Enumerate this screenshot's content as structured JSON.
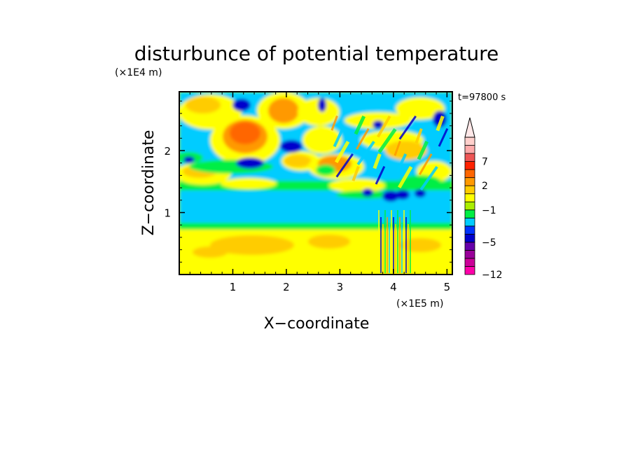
{
  "chart_data": {
    "type": "heatmap",
    "title": "disturbunce of potential temperature",
    "time_label": "t=97800 s",
    "xlabel": "X−coordinate",
    "ylabel": "Z−coordinate",
    "x_unit": "(×1E5 m)",
    "y_unit": "(×1E4 m)",
    "xlim": [
      0,
      5.1
    ],
    "ylim": [
      0,
      2.95
    ],
    "x_ticks": [
      1,
      2,
      3,
      4,
      5
    ],
    "y_ticks": [
      1,
      2
    ],
    "x_tick_labels": [
      "1",
      "2",
      "3",
      "4",
      "5"
    ],
    "y_tick_labels": [
      "1",
      "2"
    ],
    "colorbar": {
      "levels": [
        -12,
        -10,
        -8,
        -6,
        -5,
        -4,
        -3,
        -2,
        -1,
        0,
        1,
        2,
        3,
        5,
        7,
        8,
        9
      ],
      "tick_labels": [
        "7",
        "2",
        "−1",
        "−5",
        "−12"
      ],
      "tick_values": [
        7,
        2,
        -1,
        -5,
        -12
      ],
      "colors": [
        "#ff00aa",
        "#cc0099",
        "#990099",
        "#6600aa",
        "#0000cc",
        "#0033ff",
        "#00ccff",
        "#00ee44",
        "#aaee00",
        "#ffff00",
        "#ffcc00",
        "#ff9900",
        "#ff6600",
        "#ff2200",
        "#ee5555",
        "#ffaaaa",
        "#ffd0cc"
      ]
    },
    "notable_features": [
      {
        "label": "warm anomaly",
        "x": 1.3,
        "z": 2.3,
        "value": 5
      },
      {
        "label": "warm anomaly",
        "x": 1.95,
        "z": 2.7,
        "value": 5
      },
      {
        "label": "cold anomaly",
        "x": 1.3,
        "z": 1.8,
        "value": -5
      },
      {
        "label": "cold anomaly",
        "x": 1.0,
        "z": 2.75,
        "value": -5
      },
      {
        "label": "cold anomaly",
        "x": 2.1,
        "z": 2.1,
        "value": -5
      },
      {
        "label": "cold anomaly",
        "x": 4.85,
        "z": 2.55,
        "value": -5
      },
      {
        "label": "cold band",
        "x": 2.5,
        "z": 1.1,
        "value": -2
      },
      {
        "label": "warm band",
        "x": 2.5,
        "z": 0.45,
        "value": 1
      }
    ]
  }
}
